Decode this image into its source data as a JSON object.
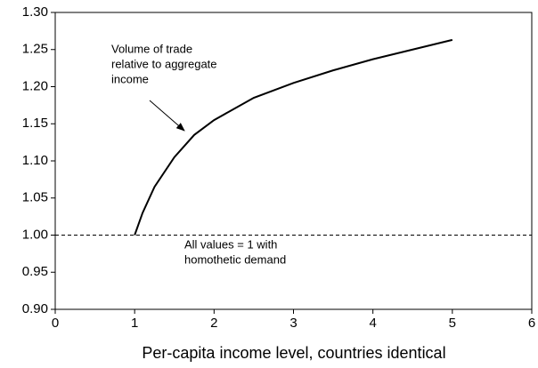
{
  "chart_data": {
    "type": "line",
    "x_label": "Per-capita income level, countries identical",
    "series": [
      {
        "color": "#000000",
        "x": [
          1,
          1.1,
          1.25,
          1.5,
          1.75,
          2,
          2.5,
          3,
          3.5,
          4,
          4.5,
          5
        ],
        "values": [
          1.0,
          1.03,
          1.065,
          1.105,
          1.135,
          1.155,
          1.185,
          1.205,
          1.222,
          1.237,
          1.25,
          1.263
        ]
      }
    ],
    "reference_line": 1.0,
    "xlim": [
      0,
      6
    ],
    "xticks": [
      0,
      1,
      2,
      3,
      4,
      5,
      6
    ],
    "ylim": [
      0.9,
      1.3
    ],
    "yticks": [
      {
        "value": 0.9,
        "label": "0.90"
      },
      {
        "value": 0.95,
        "label": "0.95"
      },
      {
        "value": 1.0,
        "label": "1.00"
      },
      {
        "value": 1.05,
        "label": "1.05"
      },
      {
        "value": 1.1,
        "label": "1.10"
      },
      {
        "value": 1.15,
        "label": "1.15"
      },
      {
        "value": 1.2,
        "label": "1.20"
      },
      {
        "value": 1.25,
        "label": "1.25"
      },
      {
        "value": 1.3,
        "label": "1.30"
      }
    ],
    "annotations": [
      {
        "lines": [
          "Volume of trade",
          "relative to aggregate",
          "income"
        ]
      },
      {
        "lines": [
          "All values = 1  with",
          "homothetic demand"
        ]
      }
    ]
  }
}
